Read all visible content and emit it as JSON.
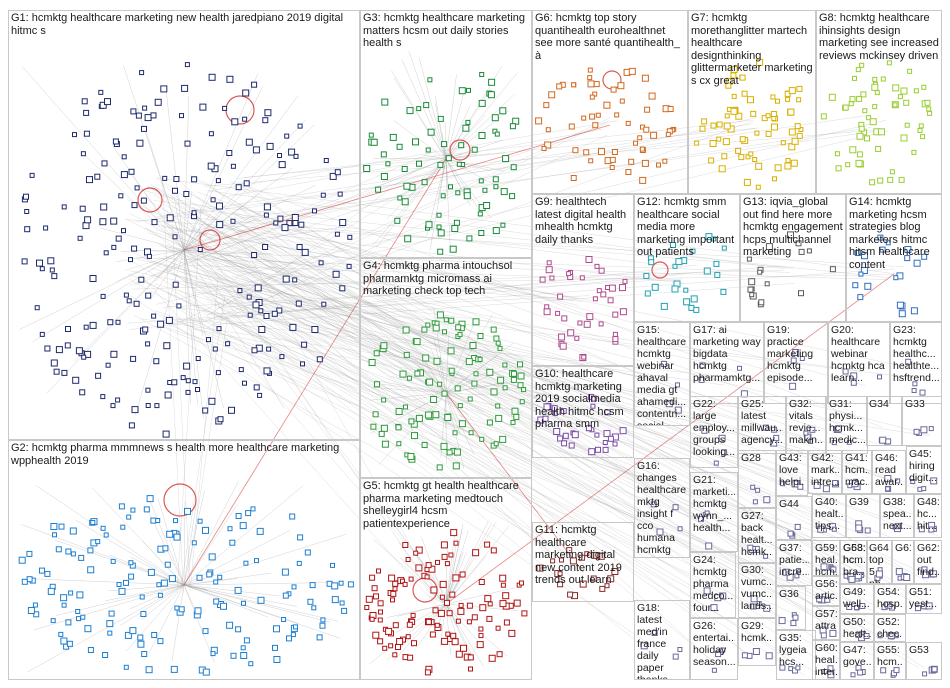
{
  "title": "",
  "palette": {
    "G1": "#1f2a6b",
    "G2": "#1e7fd0",
    "G3": "#1a8a3a",
    "G4": "#2e9a3a",
    "G5": "#b01515",
    "G6": "#d2691e",
    "G7": "#d8b000",
    "G8": "#9acd32",
    "G9": "#b04a8a",
    "G10": "#7a4aa8",
    "G11": "#8b2b2b",
    "G12": "#20a0b0",
    "G13": "#5a5a5a",
    "G14": "#3070c0",
    "other": "#6a6a9a",
    "edge": "#9a9a9a",
    "highlight": "#cc1111"
  },
  "groups": [
    {
      "id": "G1",
      "label": "G1: hcmktg healthcare marketing new health jaredpiano 2019 digital hitmc s"
    },
    {
      "id": "G2",
      "label": "G2: hcmktg pharma mmmnews s health more healthcare marketing wpphealth 2019"
    },
    {
      "id": "G3",
      "label": "G3: hcmktg healthcare marketing matters hcsm out daily stories health s"
    },
    {
      "id": "G4",
      "label": "G4: hcmktg pharma intouchsol pharmamktg micromass ai marketing check top tech"
    },
    {
      "id": "G5",
      "label": "G5: hcmktg gt health healthcare pharma marketing medtouch shelleygirl4 hcsm patientexperience"
    },
    {
      "id": "G6",
      "label": "G6: hcmktg top story quantihealth eurohealthnet see more santé quantihealth_ à"
    },
    {
      "id": "G7",
      "label": "G7: hcmktg morethanglitter martech healthcare designthinking glittermarketer marketing s cx great"
    },
    {
      "id": "G8",
      "label": "G8: hcmktg healthcare ihinsights design marketing see increased reviews mckinsey driven"
    },
    {
      "id": "G9",
      "label": "G9: healthtech latest digital health mhealth hcmktg daily thanks"
    },
    {
      "id": "G10",
      "label": "G10: healthcare hcmktg marketing 2019 socialmedia health hitmc hcsm pharma smm"
    },
    {
      "id": "G11",
      "label": "G11: hcmktg healthcare marketing digital new content 2019 trends out learn"
    },
    {
      "id": "G12",
      "label": "G12: hcmktg smm healthcare social media more marketing important out patients"
    },
    {
      "id": "G13",
      "label": "G13: iqvia_global out find here more hcmktg engagement hcps multichannel marketing"
    },
    {
      "id": "G14",
      "label": "G14: hcmktg marketing hcsm strategies blog marketers hitmc hitsm healthcare content"
    },
    {
      "id": "G15",
      "label": "G15: healthcare hcmktg webinar ahaval media gt ahamedi... contentri... social content"
    },
    {
      "id": "G16",
      "label": "G16: changes healthcare mktg insight f cco humana hcmktg kern_hea..."
    },
    {
      "id": "G17",
      "label": "G17: ai marketing way bigdata hcmktg pharmamktg..."
    },
    {
      "id": "G18",
      "label": "G18: latest med'in france daily paper thanks hcmktg"
    },
    {
      "id": "G19",
      "label": "G19: practice marketing hcmktg episode..."
    },
    {
      "id": "G20",
      "label": "G20: healthcare webinar hcmktg hca learn..."
    },
    {
      "id": "G21",
      "label": "G21: marketi... hcmktg wynn_... health..."
    },
    {
      "id": "G22",
      "label": "G22: large employ... groups looking..."
    },
    {
      "id": "G23",
      "label": "G23: hcmktg healthc... healthte... hsftrend..."
    },
    {
      "id": "G24",
      "label": "G24: hcmktg pharma medco... four..."
    },
    {
      "id": "G25",
      "label": "G25: latest millwau... agency..."
    },
    {
      "id": "G26",
      "label": "G26: entertai... holiday season..."
    },
    {
      "id": "G27",
      "label": "G27: back healt... hcmk..."
    },
    {
      "id": "G28",
      "label": "G28"
    },
    {
      "id": "G29",
      "label": "G29: hcmk..."
    },
    {
      "id": "G30",
      "label": "G30: vumc... vumc... lands..."
    },
    {
      "id": "G31",
      "label": "G31: physi... hcmk... medic..."
    },
    {
      "id": "G32",
      "label": "G32: vitals revie... makin..."
    },
    {
      "id": "G33",
      "label": "G33"
    },
    {
      "id": "G34",
      "label": "G34"
    },
    {
      "id": "G35",
      "label": "G35: lygeia hcs..."
    },
    {
      "id": "G36",
      "label": "G36"
    },
    {
      "id": "G37",
      "label": "G37: patie... incre..."
    },
    {
      "id": "G38",
      "label": "G38: spea... next..."
    },
    {
      "id": "G39",
      "label": "G39"
    },
    {
      "id": "G40",
      "label": "G40: healt... tips..."
    },
    {
      "id": "G41",
      "label": "G41: hcm... mac..."
    },
    {
      "id": "G42",
      "label": "G42: mark... intre..."
    },
    {
      "id": "G43",
      "label": "G43: love helpi..."
    },
    {
      "id": "G44",
      "label": "G44"
    },
    {
      "id": "G45",
      "label": "G45: hiring digit..."
    },
    {
      "id": "G46",
      "label": "G46: read awar..."
    },
    {
      "id": "G47",
      "label": "G47: gove..."
    },
    {
      "id": "G48",
      "label": "G48: hc... hit..."
    },
    {
      "id": "G49",
      "label": "G49: well..."
    },
    {
      "id": "G50",
      "label": "G50: healt..."
    },
    {
      "id": "G51",
      "label": "G51: yest..."
    },
    {
      "id": "G52",
      "label": "G52: chec..."
    },
    {
      "id": "G53",
      "label": "G53"
    },
    {
      "id": "G54",
      "label": "G54: hosp..."
    },
    {
      "id": "G55",
      "label": "G55: hcm..."
    },
    {
      "id": "G56",
      "label": "G56: artic..."
    },
    {
      "id": "G57",
      "label": "G57: attra..."
    },
    {
      "id": "G58",
      "label": "G58: hc... bra..."
    },
    {
      "id": "G59",
      "label": "G59: heal... hcm..."
    },
    {
      "id": "G60",
      "label": "G60: heal... inter..."
    },
    {
      "id": "G61",
      "label": "G61"
    },
    {
      "id": "G62",
      "label": "G62: out find..."
    },
    {
      "id": "G63",
      "label": "G63: hcm..."
    },
    {
      "id": "G64",
      "label": "G64: top 5 ph..."
    }
  ]
}
